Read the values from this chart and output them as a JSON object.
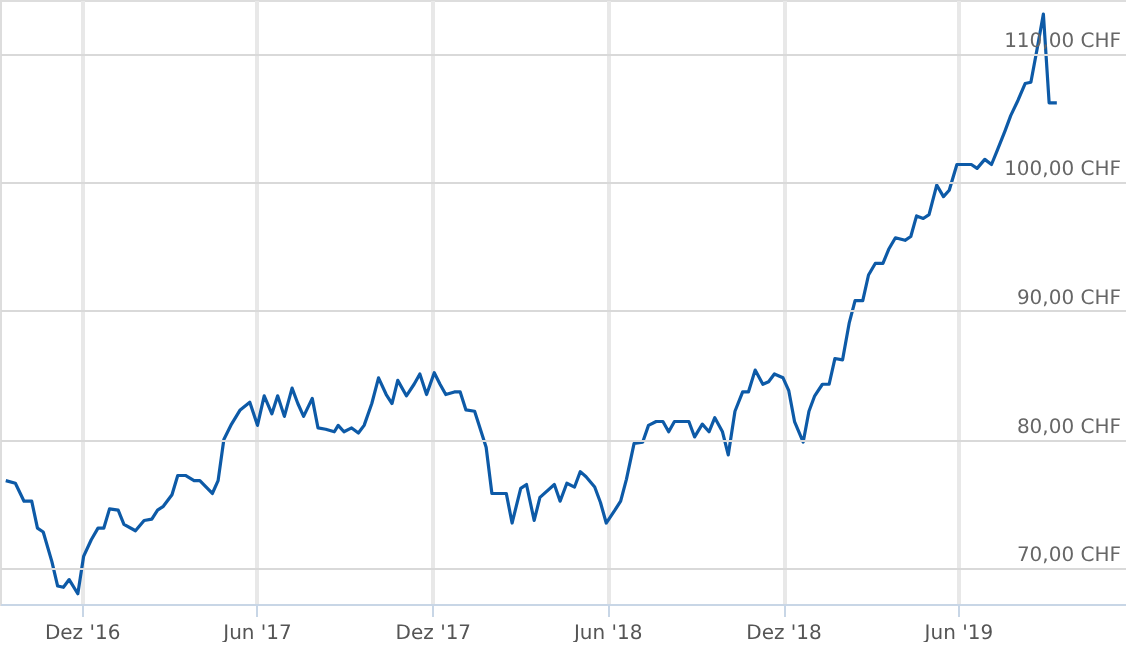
{
  "chart_data": {
    "type": "line",
    "x": [
      "2016-09-13",
      "2016-09-23",
      "2016-10-02",
      "2016-10-10",
      "2016-10-16",
      "2016-10-22",
      "2016-10-31",
      "2016-11-06",
      "2016-11-12",
      "2016-11-18",
      "2016-11-27",
      "2016-12-03",
      "2016-12-11",
      "2016-12-18",
      "2016-12-24",
      "2016-12-30",
      "2017-01-08",
      "2017-01-14",
      "2017-01-26",
      "2017-02-04",
      "2017-02-12",
      "2017-02-18",
      "2017-02-24",
      "2017-03-05",
      "2017-03-11",
      "2017-03-19",
      "2017-03-28",
      "2017-04-03",
      "2017-04-16",
      "2017-04-22",
      "2017-04-28",
      "2017-05-06",
      "2017-05-15",
      "2017-05-25",
      "2017-06-02",
      "2017-06-09",
      "2017-06-17",
      "2017-06-23",
      "2017-06-30",
      "2017-07-08",
      "2017-07-14",
      "2017-07-20",
      "2017-07-29",
      "2017-08-04",
      "2017-08-12",
      "2017-08-21",
      "2017-08-25",
      "2017-08-31",
      "2017-09-08",
      "2017-09-15",
      "2017-09-21",
      "2017-09-29",
      "2017-10-06",
      "2017-10-14",
      "2017-10-20",
      "2017-10-26",
      "2017-11-04",
      "2017-11-12",
      "2017-11-18",
      "2017-11-25",
      "2017-12-03",
      "2017-12-09",
      "2017-12-15",
      "2017-12-24",
      "2017-12-30",
      "2018-01-05",
      "2018-01-14",
      "2018-01-20",
      "2018-01-26",
      "2018-02-01",
      "2018-02-16",
      "2018-02-22",
      "2018-03-03",
      "2018-03-09",
      "2018-03-17",
      "2018-03-23",
      "2018-04-07",
      "2018-04-13",
      "2018-04-20",
      "2018-04-28",
      "2018-05-04",
      "2018-05-10",
      "2018-05-19",
      "2018-05-25",
      "2018-05-31",
      "2018-06-09",
      "2018-06-15",
      "2018-06-21",
      "2018-06-29",
      "2018-07-08",
      "2018-07-14",
      "2018-07-22",
      "2018-07-29",
      "2018-08-04",
      "2018-08-10",
      "2018-08-21",
      "2018-08-25",
      "2018-08-31",
      "2018-09-08",
      "2018-09-15",
      "2018-09-21",
      "2018-09-29",
      "2018-10-05",
      "2018-10-12",
      "2018-10-20",
      "2018-10-26",
      "2018-11-02",
      "2018-11-10",
      "2018-11-16",
      "2018-11-22",
      "2018-12-01",
      "2018-12-07",
      "2018-12-13",
      "2018-12-22",
      "2018-12-28",
      "2019-01-03",
      "2019-01-11",
      "2019-01-18",
      "2019-01-24",
      "2019-02-01",
      "2019-02-08",
      "2019-02-14",
      "2019-02-22",
      "2019-02-28",
      "2019-03-07",
      "2019-03-15",
      "2019-03-21",
      "2019-03-28",
      "2019-04-07",
      "2019-04-13",
      "2019-04-19",
      "2019-04-26",
      "2019-05-02",
      "2019-05-10",
      "2019-05-17",
      "2019-05-23",
      "2019-05-31",
      "2019-06-08",
      "2019-06-15",
      "2019-06-21",
      "2019-06-29",
      "2019-07-06",
      "2019-07-12",
      "2019-07-20",
      "2019-07-26",
      "2019-08-02",
      "2019-08-10",
      "2019-08-16",
      "2019-08-23",
      "2019-08-29",
      "2019-09-04",
      "2019-09-12"
    ],
    "series": [
      {
        "color": "#0d5aa7",
        "values": [
          76.8,
          76.6,
          75.2,
          75.2,
          73.1,
          72.8,
          70.5,
          68.6,
          68.5,
          69.1,
          68.0,
          70.9,
          72.2,
          73.1,
          73.1,
          74.6,
          74.5,
          73.4,
          72.9,
          73.7,
          73.8,
          74.5,
          74.8,
          75.7,
          77.2,
          77.2,
          76.8,
          76.8,
          75.8,
          76.8,
          80.0,
          81.2,
          82.3,
          82.9,
          81.1,
          83.4,
          82.0,
          83.4,
          81.8,
          84.0,
          82.8,
          81.8,
          83.2,
          80.9,
          80.8,
          80.6,
          81.1,
          80.6,
          80.9,
          80.5,
          81.1,
          82.8,
          84.8,
          83.5,
          82.8,
          84.6,
          83.4,
          84.3,
          85.1,
          83.5,
          85.2,
          84.3,
          83.5,
          83.7,
          83.7,
          82.3,
          82.2,
          80.8,
          79.4,
          75.8,
          75.8,
          73.5,
          76.2,
          76.5,
          73.7,
          75.5,
          76.5,
          75.2,
          76.6,
          76.3,
          77.5,
          77.1,
          76.3,
          75.1,
          73.5,
          74.5,
          75.2,
          76.9,
          79.7,
          79.8,
          81.1,
          81.4,
          81.4,
          80.6,
          81.4,
          81.4,
          81.4,
          80.2,
          81.2,
          80.6,
          81.7,
          80.6,
          78.8,
          82.2,
          83.7,
          83.7,
          85.4,
          84.3,
          84.5,
          85.1,
          84.8,
          83.8,
          81.4,
          79.8,
          82.2,
          83.4,
          84.3,
          84.3,
          86.3,
          86.2,
          89.1,
          90.8,
          90.8,
          92.8,
          93.7,
          93.7,
          94.8,
          95.7,
          95.5,
          95.8,
          97.4,
          97.2,
          97.5,
          99.8,
          98.9,
          99.4,
          101.4,
          101.4,
          101.4,
          101.1,
          101.8,
          101.4,
          102.5,
          104.0,
          105.2,
          106.3,
          107.7,
          107.8,
          110.6,
          113.1,
          106.2,
          106.2
        ]
      }
    ],
    "xlim": [
      "2016-09-07",
      "2019-11-23"
    ],
    "xticks": [
      {
        "value": "2016-12-01",
        "label": "Dez '16"
      },
      {
        "value": "2017-06-01",
        "label": "Jun '17"
      },
      {
        "value": "2017-12-01",
        "label": "Dez '17"
      },
      {
        "value": "2018-06-01",
        "label": "Jun '18"
      },
      {
        "value": "2018-12-01",
        "label": "Dez '18"
      },
      {
        "value": "2019-06-01",
        "label": "Jun '19"
      }
    ],
    "ylim": [
      67.2,
      114.2
    ],
    "yticks": [
      {
        "value": 70,
        "label": "70,00 CHF"
      },
      {
        "value": 80,
        "label": "80,00 CHF"
      },
      {
        "value": 90,
        "label": "90,00 CHF"
      },
      {
        "value": 100,
        "label": "100,00 CHF"
      },
      {
        "value": 110,
        "label": "110,00 CHF"
      }
    ],
    "grid": true,
    "marker": "none",
    "line_style": "solid"
  }
}
